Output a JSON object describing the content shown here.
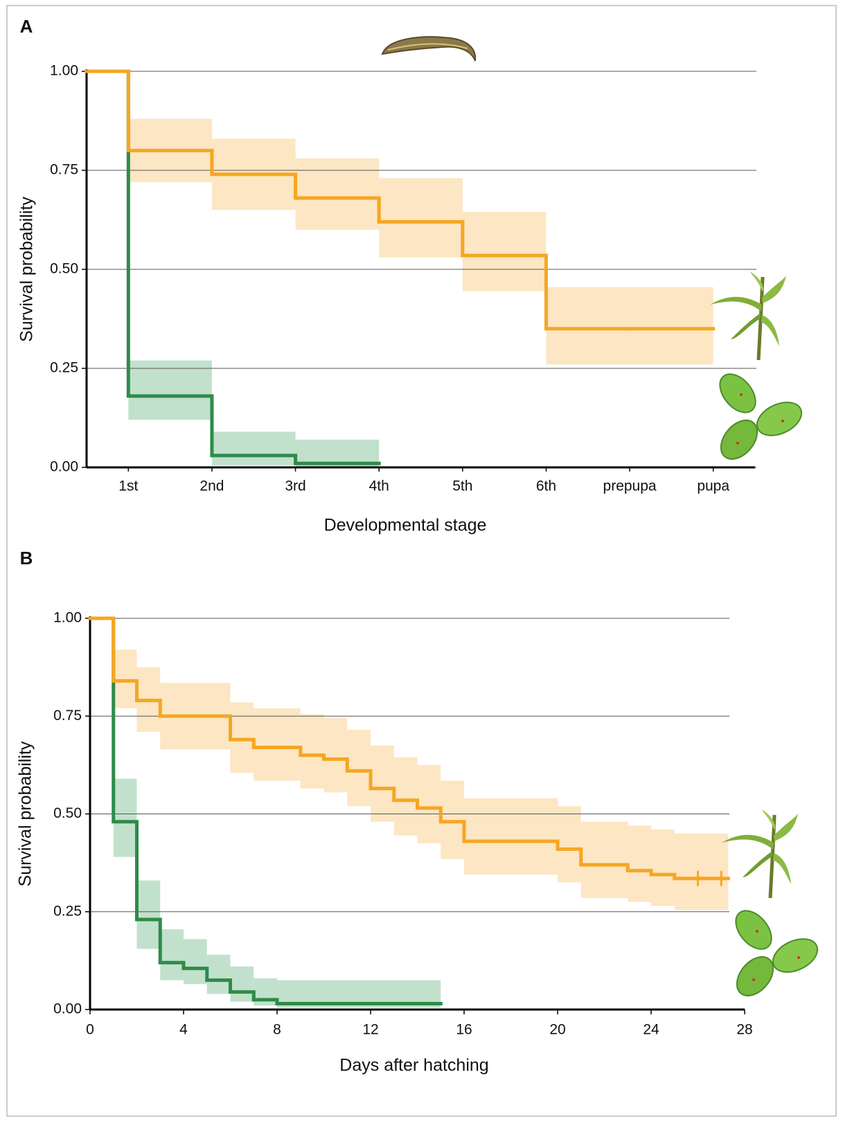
{
  "chart_data": [
    {
      "type": "step",
      "title": "A",
      "x_label": "Developmental stage",
      "y_label": "Survival probability",
      "categories": [
        "1st",
        "2nd",
        "3rd",
        "4th",
        "5th",
        "6th",
        "prepupa",
        "pupa"
      ],
      "ylim": [
        0,
        1
      ],
      "yticks": [
        {
          "value": 0,
          "label": "0.00"
        },
        {
          "value": 0.25,
          "label": "0.25"
        },
        {
          "value": 0.5,
          "label": "0.50"
        },
        {
          "value": 0.75,
          "label": "0.75"
        },
        {
          "value": 1,
          "label": "1.00"
        }
      ],
      "grid": true,
      "series": [
        {
          "color": "#2e8b4a",
          "band_color": "#b7dcc4",
          "start_value": 1,
          "values": [
            0.18,
            0.03,
            0.01,
            null,
            null,
            null,
            null,
            null
          ],
          "lower": [
            0.12,
            0.005,
            0,
            null,
            null,
            null,
            null,
            null
          ],
          "upper": [
            0.27,
            0.09,
            0.07,
            null,
            null,
            null,
            null,
            null
          ]
        },
        {
          "color": "#f6a623",
          "band_color": "#fde2b8",
          "start_value": 1,
          "values": [
            0.8,
            0.74,
            0.68,
            0.62,
            0.535,
            0.35,
            0.35,
            null
          ],
          "lower": [
            0.72,
            0.65,
            0.6,
            0.53,
            0.445,
            0.26,
            0.26,
            null
          ],
          "upper": [
            0.88,
            0.83,
            0.78,
            0.73,
            0.645,
            0.455,
            0.455,
            null
          ]
        }
      ]
    },
    {
      "type": "step",
      "title": "B",
      "x_label": "Days after hatching",
      "y_label": "Survival probability",
      "xlim": [
        0,
        28
      ],
      "xticks": [
        0,
        4,
        8,
        12,
        16,
        20,
        24,
        28
      ],
      "ylim": [
        0,
        1
      ],
      "yticks": [
        {
          "value": 0,
          "label": "0.00"
        },
        {
          "value": 0.25,
          "label": "0.25"
        },
        {
          "value": 0.5,
          "label": "0.50"
        },
        {
          "value": 0.75,
          "label": "0.75"
        },
        {
          "value": 1,
          "label": "1.00"
        }
      ],
      "grid": true,
      "series": [
        {
          "color": "#2e8b4a",
          "band_color": "#b7dcc4",
          "x": [
            0,
            1,
            2,
            3,
            4,
            5,
            6,
            7,
            8,
            15
          ],
          "values": [
            1,
            0.48,
            0.23,
            0.12,
            0.105,
            0.075,
            0.045,
            0.025,
            0.015,
            null
          ],
          "lower": [
            null,
            0.39,
            0.155,
            0.075,
            0.065,
            0.04,
            0.02,
            0.01,
            0.005,
            null
          ],
          "upper": [
            null,
            0.59,
            0.33,
            0.205,
            0.18,
            0.14,
            0.11,
            0.08,
            0.075,
            null
          ]
        },
        {
          "color": "#f6a623",
          "band_color": "#fde2b8",
          "x": [
            0,
            1,
            2,
            3,
            6,
            7,
            9,
            10,
            11,
            12,
            13,
            14,
            15,
            16,
            20,
            21,
            23,
            24,
            25,
            27.3
          ],
          "values": [
            1,
            0.84,
            0.79,
            0.75,
            0.69,
            0.67,
            0.65,
            0.64,
            0.61,
            0.565,
            0.535,
            0.515,
            0.48,
            0.43,
            0.41,
            0.37,
            0.355,
            0.345,
            0.335,
            null
          ],
          "lower": [
            null,
            0.77,
            0.71,
            0.665,
            0.605,
            0.585,
            0.565,
            0.555,
            0.52,
            0.48,
            0.445,
            0.425,
            0.385,
            0.345,
            0.325,
            0.285,
            0.275,
            0.265,
            0.255,
            null
          ],
          "upper": [
            null,
            0.92,
            0.875,
            0.835,
            0.785,
            0.77,
            0.755,
            0.745,
            0.715,
            0.675,
            0.645,
            0.625,
            0.585,
            0.54,
            0.52,
            0.48,
            0.47,
            0.46,
            0.45,
            null
          ],
          "censored_x": [
            26,
            27
          ]
        }
      ]
    }
  ]
}
